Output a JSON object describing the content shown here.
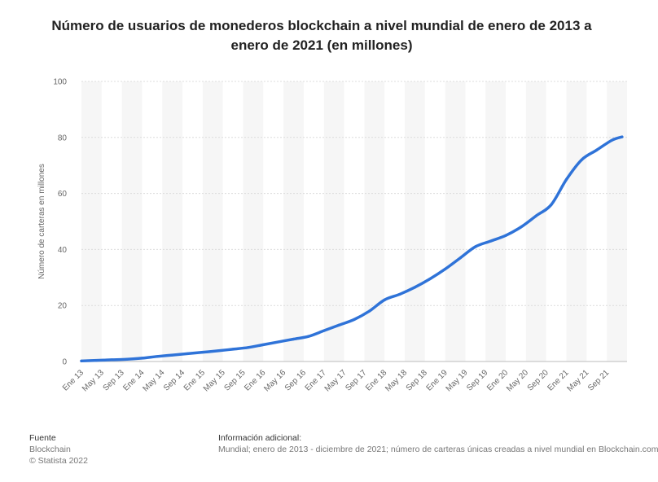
{
  "chart_data": {
    "type": "line",
    "title": "Número de usuarios de monederos blockchain a nivel mundial de enero de 2013 a enero de 2021 (en millones)",
    "ylabel": "Número de carteras en millones",
    "xlabel": "",
    "ylim": [
      0,
      100
    ],
    "yticks": [
      0,
      20,
      40,
      60,
      80,
      100
    ],
    "grid": true,
    "xticks": [
      "Ene 13",
      "May 13",
      "Sep 13",
      "Ene 14",
      "May 14",
      "Sep 14",
      "Ene 15",
      "May 15",
      "Sep 15",
      "Ene 16",
      "May 16",
      "Sep 16",
      "Ene 17",
      "May 17",
      "Sep 17",
      "Ene 18",
      "May 18",
      "Sep 18",
      "Ene 19",
      "May 19",
      "Sep 19",
      "Ene 20",
      "May 20",
      "Sep 20",
      "Ene 21",
      "May 21",
      "Sep 21"
    ],
    "series": [
      {
        "color": "#2f73d8",
        "x": [
          "Ene 13",
          "Abr 13",
          "Jul 13",
          "Oct 13",
          "Ene 14",
          "Abr 14",
          "Jul 14",
          "Oct 14",
          "Ene 15",
          "Abr 15",
          "Jul 15",
          "Oct 15",
          "Ene 16",
          "Abr 16",
          "Jul 16",
          "Oct 16",
          "Ene 17",
          "Abr 17",
          "Jul 17",
          "Oct 17",
          "Ene 18",
          "Abr 18",
          "Jul 18",
          "Oct 18",
          "Ene 19",
          "Abr 19",
          "Jul 19",
          "Oct 19",
          "Ene 20",
          "Abr 20",
          "Jul 20",
          "Oct 20",
          "Ene 21",
          "Abr 21",
          "Jul 21",
          "Oct 21",
          "Dic 21"
        ],
        "values": [
          0.2,
          0.4,
          0.6,
          0.8,
          1.2,
          1.8,
          2.3,
          2.8,
          3.3,
          3.8,
          4.4,
          5.0,
          6.0,
          7.0,
          8.0,
          9.0,
          11.0,
          13.0,
          15.0,
          18.0,
          22.0,
          24.0,
          26.5,
          29.5,
          33.0,
          37.0,
          41.0,
          43.0,
          45.0,
          48.0,
          52.0,
          56.0,
          65.0,
          72.0,
          75.5,
          79.0,
          80.2
        ]
      }
    ]
  },
  "footer": {
    "source_heading": "Fuente",
    "source_name": "Blockchain",
    "source_copyright": "© Statista 2022",
    "info_heading": "Información adicional:",
    "info_text": "Mundial; enero de 2013 - diciembre de 2021; número de carteras únicas creadas a nivel mundial en Blockchain.com"
  }
}
